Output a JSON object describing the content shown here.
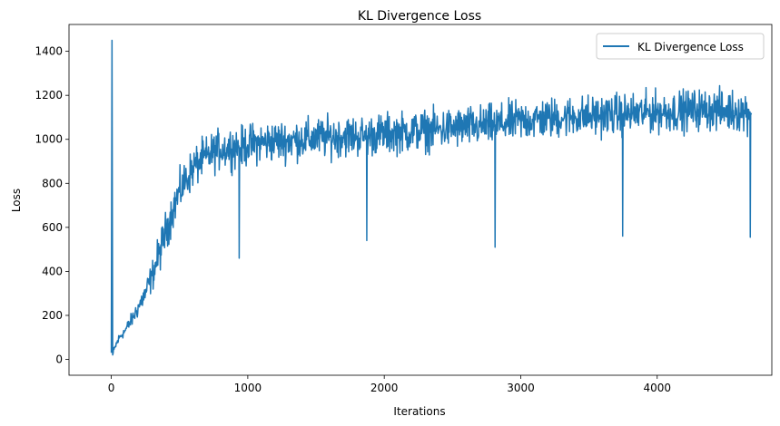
{
  "chart_data": {
    "type": "line",
    "title": "KL Divergence Loss",
    "xlabel": "Iterations",
    "ylabel": "Loss",
    "xlim": [
      -310,
      4840
    ],
    "ylim": [
      -72,
      1522
    ],
    "xticks": [
      0,
      1000,
      2000,
      3000,
      4000
    ],
    "yticks": [
      0,
      200,
      400,
      600,
      800,
      1000,
      1200,
      1400
    ],
    "grid": false,
    "legend_position": "top-right",
    "series": [
      {
        "name": "KL Divergence Loss",
        "color": "#1f77b4",
        "x": [
          0,
          5,
          10,
          30,
          60,
          100,
          150,
          200,
          250,
          300,
          350,
          400,
          450,
          500,
          550,
          600,
          650,
          700,
          750,
          800,
          850,
          900,
          935,
          937,
          940,
          1000,
          1100,
          1200,
          1300,
          1400,
          1500,
          1600,
          1700,
          1800,
          1870,
          1872,
          1875,
          1900,
          2000,
          2100,
          2200,
          2300,
          2400,
          2500,
          2600,
          2700,
          2800,
          2810,
          2812,
          2815,
          2900,
          3000,
          3100,
          3200,
          3300,
          3400,
          3500,
          3600,
          3700,
          3745,
          3747,
          3750,
          3800,
          3900,
          4000,
          4100,
          4200,
          4300,
          4400,
          4500,
          4600,
          4680,
          4682,
          4685,
          4690
        ],
        "y": [
          30,
          1450,
          20,
          60,
          100,
          130,
          180,
          240,
          300,
          380,
          480,
          580,
          680,
          760,
          820,
          870,
          900,
          920,
          940,
          955,
          960,
          965,
          970,
          460,
          960,
          975,
          985,
          990,
          995,
          1000,
          1005,
          1010,
          1015,
          1015,
          1015,
          540,
          1015,
          1020,
          1025,
          1030,
          1035,
          1040,
          1045,
          1050,
          1055,
          1060,
          1065,
          1065,
          510,
          1065,
          1075,
          1085,
          1090,
          1095,
          1100,
          1105,
          1105,
          1110,
          1115,
          1115,
          560,
          1115,
          1115,
          1120,
          1125,
          1125,
          1130,
          1135,
          1135,
          1130,
          1130,
          1125,
          555,
          1110,
          1120
        ],
        "noise_amplitude": 45
      }
    ]
  }
}
